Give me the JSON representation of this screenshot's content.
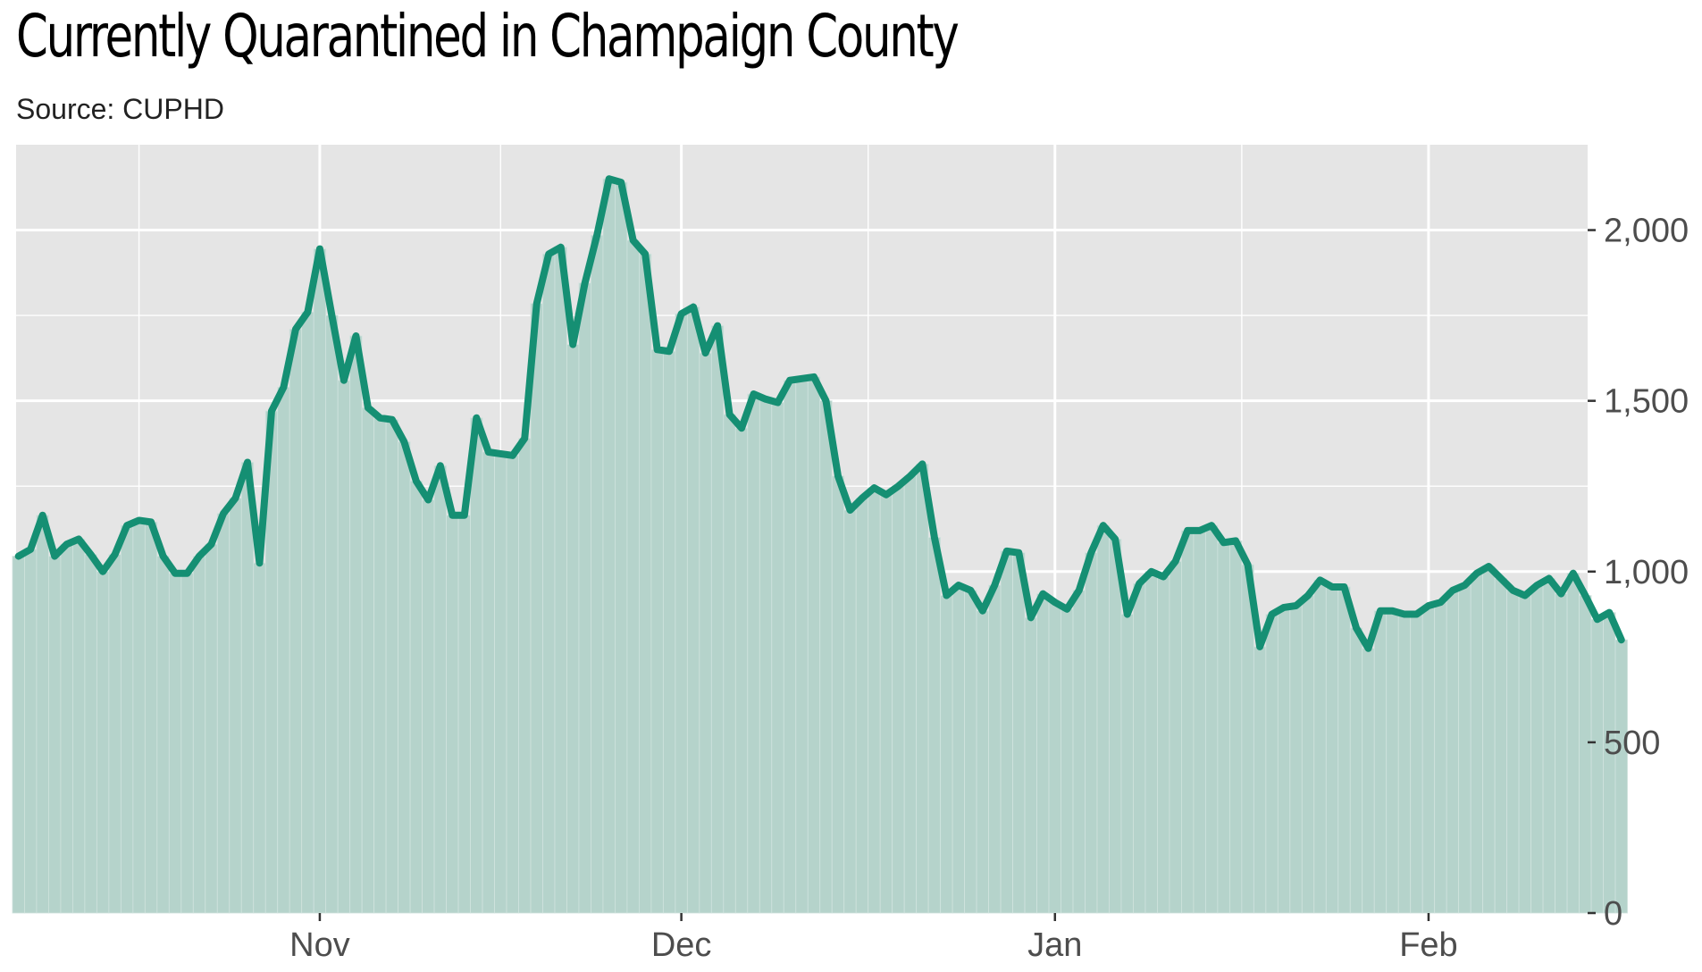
{
  "title": "Currently Quarantined in Champaign County",
  "subtitle": "Source: CUPHD",
  "colors": {
    "line": "#158f73",
    "area": "#b5d3cb",
    "panel": "#e5e5e5",
    "grid": "#ffffff",
    "bar_divider": "#d0e3de"
  },
  "chart_data": {
    "type": "area",
    "title": "Currently Quarantined in Champaign County",
    "subtitle": "Source: CUPHD",
    "xlabel": "",
    "ylabel": "",
    "x_start": "2020-10-07",
    "x_end": "2021-02-14",
    "x_ticks": [
      {
        "date": "2020-11-01",
        "label": "Nov"
      },
      {
        "date": "2020-12-01",
        "label": "Dec"
      },
      {
        "date": "2021-01-01",
        "label": "Jan"
      },
      {
        "date": "2021-02-01",
        "label": "Feb"
      }
    ],
    "y_axis_position": "right",
    "ylim": [
      0,
      2250
    ],
    "y_ticks": [
      {
        "value": 0,
        "label": "0"
      },
      {
        "value": 500,
        "label": "500"
      },
      {
        "value": 1000,
        "label": "1,000"
      },
      {
        "value": 1500,
        "label": "1,500"
      },
      {
        "value": 2000,
        "label": "2,000"
      }
    ],
    "y_minor_ticks": [
      250,
      750,
      1250,
      1750
    ],
    "grid": true,
    "values": [
      1045,
      1065,
      1165,
      1045,
      1080,
      1095,
      1050,
      1000,
      1050,
      1135,
      1150,
      1145,
      1045,
      995,
      995,
      1045,
      1080,
      1170,
      1215,
      1320,
      1025,
      1470,
      1540,
      1710,
      1760,
      1945,
      1750,
      1560,
      1690,
      1480,
      1450,
      1445,
      1380,
      1265,
      1210,
      1310,
      1165,
      1165,
      1450,
      1350,
      1345,
      1340,
      1390,
      1785,
      1930,
      1950,
      1665,
      1845,
      1985,
      2150,
      2140,
      1970,
      1930,
      1650,
      1645,
      1755,
      1775,
      1640,
      1720,
      1460,
      1420,
      1520,
      1505,
      1495,
      1560,
      1565,
      1570,
      1500,
      1280,
      1180,
      1215,
      1245,
      1225,
      1250,
      1280,
      1315,
      1100,
      930,
      960,
      945,
      885,
      960,
      1060,
      1055,
      865,
      935,
      910,
      890,
      945,
      1055,
      1135,
      1095,
      875,
      965,
      1000,
      985,
      1030,
      1120,
      1120,
      1135,
      1085,
      1090,
      1020,
      780,
      875,
      895,
      900,
      930,
      975,
      955,
      955,
      835,
      775,
      885,
      885,
      875,
      875,
      900,
      910,
      945,
      960,
      995,
      1015,
      980,
      945,
      930,
      960,
      980,
      935,
      995,
      930,
      860,
      880,
      800
    ]
  }
}
